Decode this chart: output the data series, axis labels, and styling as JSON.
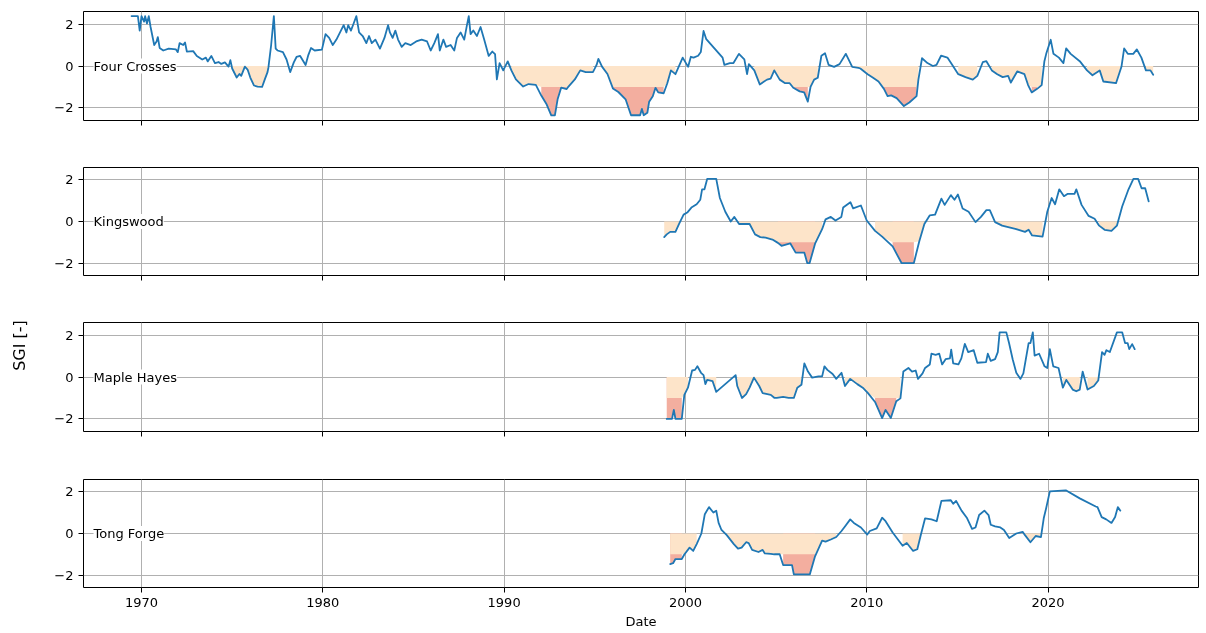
{
  "chart_data": [
    {
      "type": "line",
      "title": "Four Crosses",
      "xlim": [
        1966.8,
        2028.3
      ],
      "xticks": [
        1970,
        1980,
        1990,
        2000,
        2010,
        2020
      ],
      "ylim": [
        -2.6,
        2.6
      ],
      "yticks": [
        -2,
        0,
        2
      ],
      "grid": true,
      "tick_labels": "y",
      "x": [
        1969.45,
        1969.8,
        1969.9,
        1970.0,
        1970.14,
        1970.2,
        1970.3,
        1970.4,
        1970.5,
        1970.7,
        1970.83,
        1970.9,
        1971.0,
        1971.2,
        1971.5,
        1971.9,
        1972.0,
        1972.1,
        1972.3,
        1972.4,
        1972.5,
        1972.85,
        1973.05,
        1973.35,
        1973.55,
        1973.65,
        1973.85,
        1974.05,
        1974.25,
        1974.4,
        1974.6,
        1974.8,
        1974.9,
        1975.0,
        1975.25,
        1975.4,
        1975.5,
        1975.7,
        1975.85,
        1976.0,
        1976.2,
        1976.4,
        1976.65,
        1976.8,
        1976.95,
        1977.0,
        1977.15,
        1977.3,
        1977.4,
        1977.5,
        1977.8,
        1978.0,
        1978.2,
        1978.4,
        1978.55,
        1978.75,
        1979.05,
        1979.2,
        1979.35,
        1979.55,
        1979.95,
        1980.15,
        1980.35,
        1980.55,
        1980.75,
        1980.95,
        1981.15,
        1981.3,
        1981.4,
        1981.55,
        1981.7,
        1981.85,
        1982.0,
        1982.2,
        1982.4,
        1982.55,
        1982.7,
        1982.9,
        1983.15,
        1983.4,
        1983.6,
        1983.7,
        1983.85,
        1984.0,
        1984.15,
        1984.35,
        1984.55,
        1984.85,
        1985.15,
        1985.45,
        1985.75,
        1985.95,
        1986.15,
        1986.35,
        1986.45,
        1986.65,
        1986.8,
        1987.05,
        1987.25,
        1987.4,
        1987.6,
        1987.8,
        1987.95,
        1988.05,
        1988.15,
        1988.3,
        1988.5,
        1988.7,
        1988.9,
        1989.15,
        1989.35,
        1989.5,
        1989.6,
        1989.75,
        1989.95,
        1990.2,
        1990.4,
        1990.65,
        1991.05,
        1991.35,
        1991.75,
        1992.05,
        1992.35,
        1992.6,
        1992.8,
        1992.95,
        1993.15,
        1993.45,
        1993.55,
        1993.9,
        1994.2,
        1994.5,
        1994.9,
        1995.1,
        1995.2,
        1995.4,
        1995.7,
        1996.0,
        1996.3,
        1996.7,
        1997.0,
        1997.5,
        1997.6,
        1997.7,
        1997.9,
        1998.0,
        1998.2,
        1998.35,
        1998.5,
        1998.8,
        1999.0,
        1999.2,
        1999.45,
        1999.85,
        2000.15,
        2000.3,
        2000.45,
        2000.7,
        2000.85,
        2001.0,
        2001.15,
        2002.05,
        2002.15,
        2002.45,
        2002.65,
        2002.95,
        2003.25,
        2003.4,
        2003.5,
        2003.8,
        2004.1,
        2004.5,
        2004.7,
        2004.9,
        2005.2,
        2005.5,
        2005.75,
        2005.95,
        2006.3,
        2006.55,
        2006.75,
        2006.9,
        2007.1,
        2007.3,
        2007.5,
        2007.7,
        2007.9,
        2008.2,
        2008.5,
        2008.85,
        2009.2,
        2009.55,
        2009.65,
        2010.05,
        2010.35,
        2010.65,
        2010.95,
        2011.15,
        2011.35,
        2011.65,
        2012.05,
        2012.35,
        2012.75,
        2012.85,
        2013.05,
        2013.35,
        2013.65,
        2013.85,
        2014.1,
        2014.45,
        2014.65,
        2015.05,
        2015.45,
        2015.85,
        2016.1,
        2016.4,
        2016.6,
        2016.9,
        2017.2,
        2017.5,
        2017.8,
        2017.95,
        2018.3,
        2018.7,
        2018.9,
        2019.1,
        2019.4,
        2019.65,
        2019.8,
        2019.9,
        2020.15,
        2020.3,
        2020.6,
        2020.85,
        2021.0,
        2021.25,
        2021.75,
        2022.15,
        2022.45,
        2022.85,
        2023.05,
        2023.75,
        2024.05,
        2024.2,
        2024.4,
        2024.7,
        2024.9,
        2025.15,
        2025.4,
        2025.65,
        2025.8
      ],
      "series": [
        {
          "type": "area",
          "color": "#f3ae9f",
          "x": [
            1992.05,
            1992.35,
            1992.6,
            1992.8,
            1992.95,
            1993.15,
            1993.45,
            null,
            1996.0,
            1996.3,
            1996.7,
            1997.0,
            1997.5,
            1997.6,
            1997.7,
            1997.9,
            1998.0,
            1998.2,
            1998.35,
            1998.5,
            1998.8,
            null,
            2005.95,
            2006.3,
            2006.55,
            2006.75,
            null,
            2010.95,
            2011.15,
            2011.35,
            2011.65,
            2012.05,
            2012.35,
            2012.75,
            null,
            2019.1,
            2019.4
          ],
          "values": [
            -1.41,
            -1.84,
            -2.36,
            -2.36,
            -1.59,
            -1.03,
            -1.1,
            null,
            -1.07,
            -1.24,
            -1.59,
            -2.35,
            -2.35,
            -2.05,
            -2.35,
            -2.23,
            -1.7,
            -1.44,
            -1.04,
            -1.26,
            -1.3,
            null,
            -1.04,
            -1.21,
            -1.26,
            -1.7,
            null,
            -1.09,
            -1.44,
            -1.4,
            -1.53,
            -1.91,
            -1.74,
            -1.44,
            null,
            -1.26,
            -1.09
          ]
        },
        {
          "type": "area",
          "color": "#fde4c9",
          "values": [
            null,
            null,
            null,
            null,
            null,
            null,
            null,
            null,
            null,
            null,
            null,
            null,
            null,
            null,
            null,
            null,
            null,
            null,
            null,
            null,
            null,
            null,
            null,
            null,
            null,
            null,
            null,
            null,
            null,
            null,
            null,
            null,
            null,
            -0.12,
            -0.55,
            -0.38,
            -0.47,
            -0.03,
            -0.17,
            -0.55,
            -0.93,
            -0.98,
            -1.0,
            -0.64,
            -0.29,
            -0.07,
            null,
            null,
            null,
            null,
            null,
            null,
            null,
            null,
            null,
            null,
            null,
            null,
            null,
            null,
            null,
            null,
            null,
            null,
            null,
            null,
            null,
            null,
            null,
            null,
            null,
            null,
            null,
            null,
            null,
            null,
            null,
            null,
            null,
            null,
            null,
            null,
            null,
            null,
            null,
            null,
            null,
            null,
            null,
            null,
            null,
            null,
            null,
            null,
            null,
            null,
            null,
            null,
            null,
            null,
            null,
            null,
            null,
            null,
            null,
            null,
            null,
            null,
            null,
            null,
            null,
            null,
            null,
            null,
            null,
            null,
            -0.21,
            -0.64,
            -0.98,
            -0.86,
            -0.9,
            -1,
            -1,
            -1,
            -1,
            -1,
            -1,
            -1,
            -0.98,
            -0.64,
            -0.21,
            -0.29,
            -0.29,
            null,
            null,
            -0.03,
            -0.38,
            -1,
            -1,
            -1,
            -1,
            -1,
            -1,
            -1,
            -1,
            -1,
            -1,
            -1,
            -1,
            -1,
            -0.82,
            -0.21,
            -0.39,
            null,
            null,
            null,
            null,
            null,
            null,
            null,
            null,
            null,
            null,
            null,
            null,
            null,
            null,
            null,
            null,
            -0.21,
            -0.88,
            -0.65,
            -0.6,
            -0.21,
            -0.65,
            -0.82,
            -0.82,
            -1,
            -1,
            -1,
            -1,
            -1.0,
            -0.65,
            -0.56,
            null,
            null,
            null,
            null,
            null,
            null,
            -0.04,
            -0.09,
            -0.12,
            -0.39,
            -0.56,
            -0.74,
            -1,
            -1,
            -1,
            -1,
            -1,
            -1,
            -1,
            -0.65,
            null,
            null,
            null,
            null,
            null,
            null,
            null,
            -0.39,
            -0.53,
            -0.65,
            -0.47,
            null,
            null,
            -0.21,
            -0.39,
            -0.53,
            -0.47,
            -0.79,
            -0.26,
            -0.39,
            -0.91,
            -1,
            -1,
            -0.91,
            null,
            null,
            null,
            null,
            null,
            null,
            null,
            null,
            null,
            -0.21,
            -0.44,
            -0.21,
            -0.74,
            -0.82,
            -0.04,
            null,
            null,
            null,
            null,
            null,
            -0.21,
            -0.21,
            -0.42
          ]
        },
        {
          "color": "#1f77b4",
          "values": [
            2.38,
            2.38,
            1.69,
            2.38,
            2.12,
            2.38,
            2.03,
            2.38,
            1.86,
            1.0,
            1.17,
            1.38,
            0.86,
            0.74,
            0.83,
            0.79,
            0.66,
            1.09,
            1.0,
            1.12,
            0.69,
            0.71,
            0.48,
            0.31,
            0.4,
            0.22,
            0.48,
            0.14,
            0.19,
            0.1,
            0.17,
            -0.03,
            0.28,
            -0.12,
            -0.55,
            -0.38,
            -0.47,
            -0.03,
            -0.17,
            -0.55,
            -0.93,
            -0.98,
            -1.0,
            -0.64,
            -0.29,
            -0.07,
            1.0,
            2.38,
            0.83,
            0.74,
            0.66,
            0.31,
            -0.29,
            0.17,
            0.43,
            0.48,
            0.05,
            0.52,
            0.86,
            0.74,
            0.78,
            1.52,
            1.34,
            1.0,
            1.26,
            1.6,
            1.95,
            1.6,
            1.95,
            1.69,
            2.03,
            2.38,
            1.6,
            1.43,
            1.09,
            1.43,
            1.09,
            1.26,
            0.83,
            1.34,
            1.95,
            1.6,
            1.34,
            1.69,
            1.26,
            0.91,
            1.09,
            1.0,
            1.17,
            1.26,
            1.17,
            0.74,
            1.09,
            1.52,
            0.74,
            1.26,
            0.91,
            1.0,
            0.74,
            1.34,
            1.6,
            1.26,
            1.95,
            2.38,
            1.52,
            1.69,
            1.43,
            1.86,
            1.26,
            0.48,
            0.69,
            0.57,
            -0.64,
            0.14,
            -0.21,
            0.22,
            -0.21,
            -0.64,
            -0.98,
            -0.86,
            -0.9,
            -1.41,
            -1.84,
            -2.36,
            -2.36,
            -1.59,
            -1.03,
            -1.1,
            -0.98,
            -0.64,
            -0.21,
            -0.29,
            -0.29,
            0.05,
            0.34,
            -0.03,
            -0.38,
            -1.07,
            -1.24,
            -1.59,
            -2.35,
            -2.35,
            -2.05,
            -2.35,
            -2.23,
            -1.7,
            -1.44,
            -1.04,
            -1.26,
            -1.3,
            -0.82,
            -0.21,
            -0.39,
            0.4,
            -0.04,
            0.44,
            0.4,
            0.49,
            0.67,
            1.67,
            1.28,
            0.4,
            0.05,
            0.14,
            0.14,
            0.58,
            0.32,
            -0.39,
            0.09,
            -0.21,
            -0.88,
            -0.65,
            -0.6,
            -0.21,
            -0.65,
            -0.82,
            -0.82,
            -1.04,
            -1.21,
            -1.26,
            -1.7,
            -1.0,
            -0.65,
            -0.56,
            0.49,
            0.61,
            0.05,
            -0.04,
            0.09,
            0.58,
            -0.04,
            -0.09,
            -0.12,
            -0.39,
            -0.56,
            -0.74,
            -1.09,
            -1.44,
            -1.4,
            -1.53,
            -1.91,
            -1.74,
            -1.44,
            -0.65,
            0.37,
            0.14,
            0.0,
            0.05,
            0.49,
            0.4,
            0.14,
            -0.39,
            -0.53,
            -0.65,
            -0.47,
            0.18,
            0.23,
            -0.21,
            -0.39,
            -0.53,
            -0.47,
            -0.79,
            -0.26,
            -0.39,
            -0.91,
            -1.26,
            -1.09,
            -0.91,
            0.23,
            0.58,
            1.25,
            0.58,
            0.4,
            0.14,
            0.84,
            0.58,
            0.23,
            -0.21,
            -0.44,
            -0.21,
            -0.74,
            -0.82,
            -0.04,
            0.84,
            0.58,
            0.58,
            0.79,
            0.4,
            -0.21,
            -0.21,
            -0.42
          ]
        }
      ]
    },
    {
      "type": "line",
      "title": "Kingswood",
      "xlim": [
        1966.8,
        2028.3
      ],
      "xticks": [
        1970,
        1980,
        1990,
        2000,
        2010,
        2020
      ],
      "ylim": [
        -2.6,
        2.6
      ],
      "yticks": [
        -2,
        0,
        2
      ],
      "grid": true,
      "tick_labels": "y",
      "x": [
        1998.83,
        1998.97,
        1999.16,
        1999.45,
        1999.65,
        1999.9,
        2000.1,
        2000.33,
        2000.62,
        2000.82,
        2000.92,
        2001.05,
        2001.2,
        2001.7,
        2001.9,
        2002.2,
        2002.5,
        2002.7,
        2002.96,
        2003.54,
        2003.84,
        2004.13,
        2004.42,
        2004.8,
        2005.1,
        2005.3,
        2005.78,
        2006.08,
        2006.56,
        2006.72,
        2006.85,
        2007.15,
        2007.54,
        2007.73,
        2008.02,
        2008.28,
        2008.6,
        2008.7,
        2009.1,
        2009.25,
        2009.68,
        2010.0,
        2010.46,
        2010.85,
        2011.43,
        2011.92,
        2012.6,
        2012.9,
        2013.18,
        2013.48,
        2013.77,
        2014.12,
        2014.3,
        2014.64,
        2014.84,
        2015.03,
        2015.29,
        2015.62,
        2016.0,
        2016.3,
        2016.6,
        2016.79,
        2017.08,
        2017.47,
        2017.86,
        2018.25,
        2018.73,
        2018.93,
        2019.12,
        2019.7,
        2019.96,
        2020.2,
        2020.39,
        2020.62,
        2020.88,
        2021.07,
        2021.46,
        2021.56,
        2021.85,
        2022.24,
        2022.57,
        2022.82,
        2023.12,
        2023.5,
        2023.8,
        2024.09,
        2024.44,
        2024.71,
        2024.97,
        2025.16,
        2025.36,
        2025.55
      ],
      "series": [
        {
          "type": "area",
          "color": "#f3ae9f",
          "x": [
            2005.1,
            2005.3,
            2005.78,
            2006.08,
            2006.56,
            2006.72,
            2006.85,
            2007.15,
            null,
            2011.43,
            2011.92,
            2012.6
          ],
          "values": [
            -1.03,
            -1.17,
            -1.05,
            -1.5,
            -1.5,
            -2.0,
            -2.0,
            -1.07,
            null,
            -1.2,
            -2.0,
            -2.0
          ]
        },
        {
          "type": "area",
          "color": "#fde4c9",
          "values": [
            -0.75,
            -0.62,
            -0.5,
            -0.5,
            -0.12,
            null,
            null,
            null,
            null,
            null,
            null,
            null,
            null,
            null,
            null,
            null,
            null,
            null,
            -0.12,
            -0.12,
            -0.62,
            -0.75,
            -0.78,
            -0.87,
            -1,
            -1,
            -1,
            -1,
            -1,
            -1,
            -1,
            -1,
            -0.37,
            null,
            null,
            null,
            null,
            null,
            null,
            null,
            null,
            null,
            -0.45,
            -0.73,
            -1,
            -1,
            -1,
            -0.95,
            -0.12,
            null,
            null,
            null,
            null,
            null,
            null,
            null,
            null,
            null,
            null,
            null,
            null,
            null,
            -0.03,
            -0.2,
            -0.28,
            -0.37,
            -0.5,
            -0.4,
            -0.67,
            -0.73,
            null,
            null,
            null,
            null,
            null,
            null,
            null,
            null,
            null,
            null,
            null,
            -0.2,
            -0.4,
            -0.45,
            -0.2,
            null,
            null,
            null,
            null,
            null,
            null,
            null
          ]
        },
        {
          "color": "#1f77b4",
          "values": [
            -0.75,
            -0.62,
            -0.5,
            -0.5,
            -0.12,
            0.33,
            0.43,
            0.67,
            0.83,
            1.05,
            1.55,
            1.55,
            2.05,
            2.05,
            1.13,
            0.47,
            0.0,
            0.22,
            -0.12,
            -0.12,
            -0.62,
            -0.75,
            -0.78,
            -0.87,
            -1.03,
            -1.17,
            -1.05,
            -1.5,
            -1.5,
            -2.0,
            -2.0,
            -1.07,
            -0.37,
            0.1,
            0.22,
            0.05,
            0.22,
            0.67,
            0.93,
            0.63,
            0.77,
            0.05,
            -0.45,
            -0.73,
            -1.2,
            -2.0,
            -2.0,
            -0.95,
            -0.12,
            0.3,
            0.33,
            1.1,
            0.8,
            1.27,
            1.05,
            1.3,
            0.63,
            0.47,
            -0.03,
            0.22,
            0.55,
            0.55,
            -0.03,
            -0.2,
            -0.28,
            -0.37,
            -0.5,
            -0.4,
            -0.67,
            -0.73,
            0.47,
            1.13,
            0.83,
            1.55,
            1.22,
            1.33,
            1.33,
            1.55,
            0.8,
            0.27,
            0.13,
            -0.2,
            -0.4,
            -0.45,
            -0.2,
            0.72,
            1.55,
            2.05,
            2.05,
            1.6,
            1.6,
            0.97
          ]
        }
      ]
    },
    {
      "type": "line",
      "title": "Maple Hayes",
      "ylabel": "SGI [-]",
      "xlim": [
        1966.8,
        2028.3
      ],
      "xticks": [
        1970,
        1980,
        1990,
        2000,
        2010,
        2020
      ],
      "ylim": [
        -2.6,
        2.6
      ],
      "yticks": [
        -2,
        0,
        2
      ],
      "grid": true,
      "tick_labels": "y",
      "x": [
        1998.97,
        1999.26,
        1999.36,
        1999.45,
        1999.8,
        1999.94,
        2000.14,
        2000.37,
        2000.53,
        2000.66,
        2000.86,
        2001.0,
        2001.1,
        2001.2,
        2001.5,
        2001.7,
        2002.77,
        2002.86,
        2003.12,
        2003.35,
        2003.54,
        2003.78,
        2004.07,
        2004.26,
        2004.71,
        2004.9,
        2005.04,
        2005.39,
        2005.69,
        2005.98,
        2006.17,
        2006.4,
        2006.56,
        2006.76,
        2006.99,
        2007.34,
        2007.54,
        2007.67,
        2007.83,
        2008.12,
        2008.32,
        2008.61,
        2008.8,
        2009.09,
        2009.48,
        2009.78,
        2010.07,
        2010.46,
        2010.85,
        2011.04,
        2011.33,
        2011.63,
        2011.86,
        2012.02,
        2012.3,
        2012.5,
        2012.7,
        2012.83,
        2013.08,
        2013.22,
        2013.48,
        2013.57,
        2013.8,
        2014.0,
        2014.16,
        2014.35,
        2014.59,
        2014.66,
        2014.77,
        2015.06,
        2015.22,
        2015.41,
        2015.6,
        2015.9,
        2016.1,
        2016.58,
        2016.68,
        2016.84,
        2017.08,
        2017.23,
        2017.33,
        2017.7,
        2017.85,
        2018.05,
        2018.25,
        2018.48,
        2018.64,
        2018.93,
        2019.03,
        2019.16,
        2019.26,
        2019.51,
        2019.81,
        2019.96,
        2020.1,
        2020.29,
        2020.58,
        2020.82,
        2021.01,
        2021.36,
        2021.56,
        2021.75,
        2021.91,
        2022.18,
        2022.53,
        2022.77,
        2022.98,
        2023.12,
        2023.22,
        2023.41,
        2023.8,
        2024.09,
        2024.25,
        2024.39,
        2024.48,
        2024.64,
        2024.78
      ],
      "series": [
        {
          "type": "area",
          "color": "#f3ae9f",
          "x": [
            1998.97,
            1999.26,
            1999.36,
            1999.45,
            1999.8,
            null,
            2010.46,
            2010.85,
            2011.04,
            2011.33,
            2011.63
          ],
          "values": [
            -2.0,
            -2.0,
            -1.57,
            -2.0,
            -2.0,
            null,
            -1.19,
            -1.96,
            -1.57,
            -1.96,
            -1.16
          ]
        },
        {
          "type": "area",
          "color": "#fde4c9",
          "values": [
            -1,
            -1,
            -1,
            -1,
            -1,
            -0.85,
            -0.51,
            null,
            null,
            null,
            null,
            null,
            -0.34,
            -0.14,
            -0.2,
            -0.71,
            null,
            -0.43,
            -1.0,
            -0.82,
            -0.51,
            -0.03,
            -0.43,
            -0.77,
            -0.85,
            -0.99,
            -1.0,
            -0.95,
            -1.0,
            -1.0,
            -0.51,
            -0.37,
            null,
            null,
            null,
            null,
            null,
            null,
            null,
            null,
            null,
            null,
            -0.43,
            -0.09,
            -0.34,
            -0.51,
            -0.77,
            -1,
            -1,
            -1,
            -1,
            -1,
            -1,
            null,
            null,
            null,
            null,
            null,
            null,
            null,
            null,
            null,
            null,
            null,
            null,
            null,
            null,
            null,
            null,
            null,
            null,
            null,
            null,
            null,
            null,
            null,
            null,
            null,
            null,
            null,
            null,
            null,
            null,
            null,
            null,
            null,
            null,
            null,
            null,
            null,
            null,
            null,
            null,
            null,
            null,
            null,
            null,
            -0.51,
            -0.14,
            -0.6,
            -0.68,
            -0.6,
            null,
            -0.6,
            -0.43,
            -0.17,
            null,
            null,
            null,
            null,
            null,
            null,
            null,
            null,
            null,
            null,
            null
          ]
        },
        {
          "color": "#1f77b4",
          "values": [
            -2.0,
            -2.0,
            -1.57,
            -2.0,
            -2.0,
            -0.85,
            -0.51,
            0.31,
            0.34,
            0.51,
            0.2,
            0.09,
            -0.34,
            -0.14,
            -0.2,
            -0.71,
            0.09,
            -0.43,
            -1.0,
            -0.82,
            -0.51,
            -0.03,
            -0.43,
            -0.77,
            -0.85,
            -0.99,
            -1.0,
            -0.95,
            -1.0,
            -1.0,
            -0.51,
            -0.37,
            0.65,
            0.26,
            -0.03,
            0.03,
            0.03,
            0.51,
            0.34,
            0.14,
            -0.09,
            0.2,
            -0.43,
            -0.09,
            -0.34,
            -0.51,
            -0.77,
            -1.19,
            -1.96,
            -1.57,
            -1.96,
            -1.16,
            -1.02,
            0.26,
            0.43,
            0.26,
            0.31,
            -0.09,
            0.17,
            0.43,
            0.6,
            1.11,
            1.06,
            1.11,
            0.6,
            0.85,
            0.89,
            1.31,
            0.65,
            0.6,
            0.89,
            1.58,
            1.19,
            1.28,
            0.68,
            0.71,
            1.11,
            0.77,
            0.85,
            1.19,
            2.13,
            2.13,
            1.62,
            0.85,
            0.2,
            -0.09,
            0.17,
            1.62,
            1.62,
            2.13,
            1.02,
            1.11,
            0.51,
            0.43,
            1.33,
            0.51,
            0.43,
            -0.51,
            -0.14,
            -0.6,
            -0.68,
            -0.6,
            0.26,
            -0.6,
            -0.43,
            -0.17,
            1.19,
            1.06,
            1.28,
            1.19,
            2.13,
            2.13,
            1.62,
            1.62,
            1.33,
            1.57,
            1.33
          ]
        }
      ]
    },
    {
      "type": "line",
      "title": "Tong Forge",
      "xlabel": "Date",
      "xlim": [
        1966.8,
        2028.3
      ],
      "xticks": [
        1970,
        1980,
        1990,
        2000,
        2010,
        2020
      ],
      "ylim": [
        -2.6,
        2.6
      ],
      "yticks": [
        -2,
        0,
        2
      ],
      "grid": true,
      "x": [
        1999.16,
        1999.32,
        1999.45,
        1999.8,
        1999.94,
        2000.23,
        2000.43,
        2000.62,
        2000.88,
        2001.07,
        2001.3,
        2001.54,
        2001.7,
        2001.83,
        2001.99,
        2002.28,
        2002.67,
        2002.9,
        2003.1,
        2003.35,
        2003.49,
        2003.68,
        2004.03,
        2004.26,
        2004.38,
        2004.71,
        2004.9,
        2005.2,
        2005.39,
        2005.88,
        2005.98,
        2006.86,
        2007.15,
        2007.54,
        2007.73,
        2008.02,
        2008.32,
        2008.61,
        2008.8,
        2009.09,
        2009.29,
        2009.68,
        2010.03,
        2010.17,
        2010.55,
        2010.85,
        2011.04,
        2011.43,
        2011.98,
        2012.21,
        2012.56,
        2012.79,
        2012.99,
        2013.22,
        2013.57,
        2013.86,
        2014.12,
        2014.64,
        2014.77,
        2014.93,
        2015.23,
        2015.52,
        2015.81,
        2016.0,
        2016.2,
        2016.49,
        2016.72,
        2016.84,
        2017.08,
        2017.37,
        2017.57,
        2017.86,
        2018.25,
        2018.6,
        2018.73,
        2019.03,
        2019.32,
        2019.61,
        2019.77,
        2019.9,
        2020.1,
        2020.98,
        2021.75,
        2022.63,
        2022.73,
        2022.96,
        2023.21,
        2023.5,
        2023.7,
        2023.85,
        2023.99
      ],
      "series": [
        {
          "type": "area",
          "color": "#f3ae9f",
          "x": [
            1999.16,
            1999.32,
            1999.45,
            1999.8,
            null,
            2005.39,
            2005.88,
            2005.98,
            2006.86,
            2007.15
          ],
          "values": [
            -1.47,
            -1.43,
            -1.23,
            -1.23,
            null,
            -1.52,
            -1.52,
            -1.97,
            -1.97,
            -1.1
          ]
        },
        {
          "type": "area",
          "color": "#fde4c9",
          "values": [
            -1,
            -1,
            -1,
            -1,
            -1,
            -0.68,
            -0.84,
            -0.51,
            null,
            null,
            null,
            null,
            null,
            null,
            null,
            -0.08,
            -0.51,
            -0.73,
            -0.68,
            -0.42,
            -0.46,
            -0.79,
            -0.89,
            -0.79,
            -0.96,
            -0.98,
            -1.0,
            -1.0,
            -1,
            -1,
            -1,
            -1,
            -1,
            -0.34,
            -0.39,
            -0.29,
            -0.17,
            null,
            null,
            null,
            null,
            null,
            null,
            null,
            null,
            null,
            null,
            null,
            -0.59,
            -0.46,
            -0.84,
            -0.76,
            -0.05,
            null,
            null,
            null,
            null,
            null,
            null,
            null,
            null,
            null,
            null,
            null,
            null,
            null,
            null,
            null,
            null,
            null,
            null,
            null,
            null,
            null,
            -0.08,
            -0.42,
            -0.12,
            -0.17,
            null,
            null,
            null,
            null,
            null,
            null,
            null,
            null,
            null,
            null,
            null,
            null,
            null
          ]
        },
        {
          "color": "#1f77b4",
          "values": [
            -1.47,
            -1.43,
            -1.23,
            -1.23,
            -1.01,
            -0.68,
            -0.84,
            -0.51,
            0.0,
            0.93,
            1.27,
            1.01,
            1.1,
            0.51,
            0.17,
            -0.08,
            -0.51,
            -0.73,
            -0.68,
            -0.42,
            -0.46,
            -0.79,
            -0.89,
            -0.79,
            -0.96,
            -0.98,
            -1.0,
            -1.0,
            -1.52,
            -1.52,
            -1.97,
            -1.97,
            -1.1,
            -0.34,
            -0.39,
            -0.29,
            -0.17,
            0.12,
            0.34,
            0.68,
            0.51,
            0.29,
            -0.05,
            0.12,
            0.25,
            0.76,
            0.59,
            0.05,
            -0.59,
            -0.46,
            -0.84,
            -0.76,
            -0.05,
            0.73,
            0.68,
            0.59,
            1.57,
            1.6,
            1.43,
            1.57,
            1.1,
            0.76,
            0.22,
            0.29,
            0.89,
            1.1,
            0.89,
            0.42,
            0.34,
            0.29,
            0.17,
            -0.22,
            0.0,
            0.08,
            -0.08,
            -0.42,
            -0.12,
            -0.17,
            0.76,
            1.23,
            2.03,
            2.08,
            1.69,
            1.3,
            1.27,
            0.79,
            0.68,
            0.51,
            0.79,
            1.27,
            1.1
          ]
        }
      ]
    }
  ]
}
